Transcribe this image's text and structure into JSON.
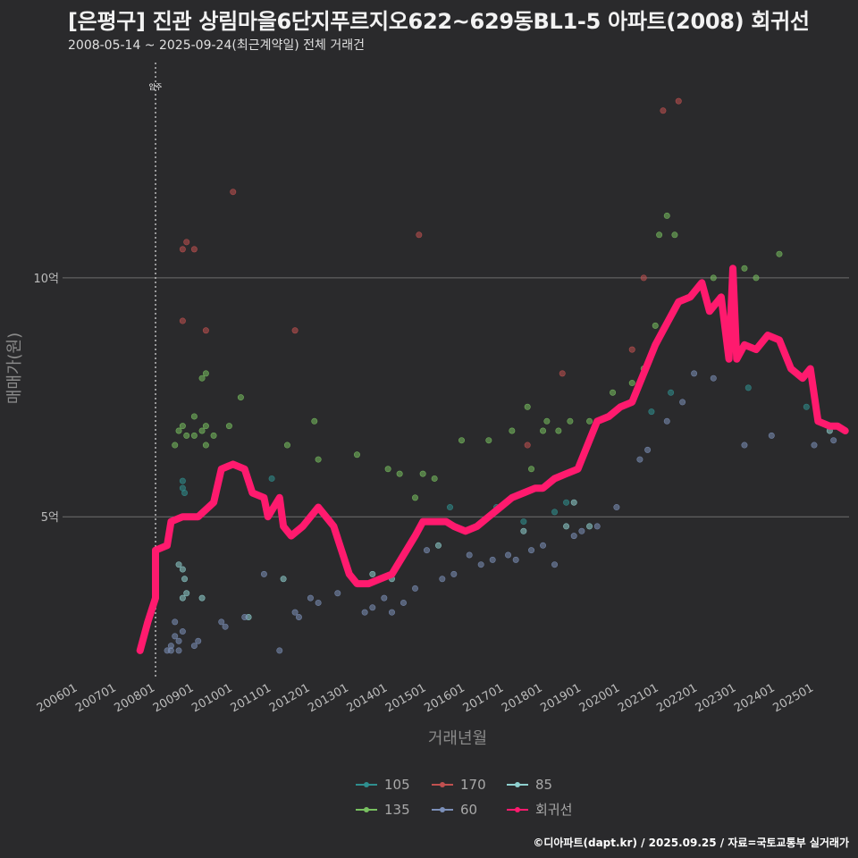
{
  "title": "[은평구] 진관 상림마을6단지푸르지오622~629동BL1-5 아파트(2008) 회귀선",
  "subtitle": "2008-05-14 ~ 2025-09-24(최근계약일) 전체 거래건",
  "source": "©디아파트(dapt.kr) / 2025.09.25 / 자료=국토교통부 실거래가",
  "chart_data": {
    "type": "scatter",
    "xlabel": "거래년월",
    "ylabel": "매매가(원)",
    "x_ticks": [
      "200601",
      "200701",
      "200801",
      "200901",
      "201001",
      "201101",
      "201201",
      "201301",
      "201401",
      "201501",
      "201601",
      "201701",
      "201801",
      "201901",
      "202001",
      "202101",
      "202201",
      "202301",
      "202401",
      "202501"
    ],
    "y_ticks": [
      {
        "value": 5,
        "label": "5억"
      },
      {
        "value": 10,
        "label": "10억"
      }
    ],
    "xlim": [
      2005.6,
      2025.9
    ],
    "ylim": [
      1.6,
      14.6
    ],
    "annotation": {
      "x": 2008.0,
      "label": "입주"
    },
    "legend_position": "bottom",
    "colors": {
      "105": "#2f8f8f",
      "170": "#c05050",
      "85": "#8fd0cf",
      "135": "#78c060",
      "60": "#7b8fb8",
      "회귀선": "#ff1a6e"
    },
    "series": [
      {
        "name": "105",
        "points": [
          [
            2008.7,
            5.6
          ],
          [
            2008.7,
            5.75
          ],
          [
            2008.75,
            5.5
          ],
          [
            2011.0,
            5.8
          ],
          [
            2015.6,
            5.2
          ],
          [
            2016.8,
            5.2
          ],
          [
            2017.5,
            4.9
          ],
          [
            2018.3,
            5.1
          ],
          [
            2018.6,
            5.3
          ],
          [
            2020.8,
            7.2
          ],
          [
            2021.3,
            7.6
          ],
          [
            2023.3,
            7.7
          ],
          [
            2024.8,
            7.3
          ]
        ]
      },
      {
        "name": "170",
        "points": [
          [
            2008.7,
            10.6
          ],
          [
            2008.8,
            10.75
          ],
          [
            2009.0,
            10.6
          ],
          [
            2008.7,
            9.1
          ],
          [
            2009.3,
            8.9
          ],
          [
            2010.0,
            11.8
          ],
          [
            2011.6,
            8.9
          ],
          [
            2014.8,
            10.9
          ],
          [
            2017.6,
            6.5
          ],
          [
            2018.5,
            8.0
          ],
          [
            2020.3,
            8.5
          ],
          [
            2021.1,
            13.5
          ],
          [
            2021.5,
            13.7
          ],
          [
            2020.6,
            10.0
          ]
        ]
      },
      {
        "name": "85",
        "points": [
          [
            2008.6,
            4.0
          ],
          [
            2008.7,
            3.9
          ],
          [
            2008.75,
            3.7
          ],
          [
            2008.7,
            3.3
          ],
          [
            2008.8,
            3.4
          ],
          [
            2009.2,
            3.3
          ],
          [
            2010.4,
            2.9
          ],
          [
            2011.3,
            3.7
          ],
          [
            2013.6,
            3.8
          ],
          [
            2014.1,
            3.7
          ],
          [
            2015.3,
            4.4
          ],
          [
            2017.5,
            4.7
          ],
          [
            2018.6,
            4.8
          ],
          [
            2019.2,
            4.8
          ],
          [
            2018.8,
            5.3
          ],
          [
            2025.4,
            6.8
          ],
          [
            2025.5,
            6.9
          ]
        ]
      },
      {
        "name": "135",
        "points": [
          [
            2008.5,
            6.5
          ],
          [
            2008.6,
            6.8
          ],
          [
            2008.7,
            6.9
          ],
          [
            2008.8,
            6.7
          ],
          [
            2009.0,
            7.1
          ],
          [
            2009.2,
            7.9
          ],
          [
            2009.3,
            8.0
          ],
          [
            2009.0,
            6.7
          ],
          [
            2009.2,
            6.8
          ],
          [
            2009.3,
            6.9
          ],
          [
            2009.3,
            6.5
          ],
          [
            2009.5,
            6.7
          ],
          [
            2009.9,
            6.9
          ],
          [
            2010.2,
            7.5
          ],
          [
            2011.4,
            6.5
          ],
          [
            2012.1,
            7.0
          ],
          [
            2012.2,
            6.2
          ],
          [
            2013.2,
            6.3
          ],
          [
            2014.0,
            6.0
          ],
          [
            2014.3,
            5.9
          ],
          [
            2014.7,
            5.4
          ],
          [
            2014.9,
            5.9
          ],
          [
            2015.2,
            5.8
          ],
          [
            2015.9,
            6.6
          ],
          [
            2016.6,
            6.6
          ],
          [
            2017.2,
            6.8
          ],
          [
            2017.6,
            7.3
          ],
          [
            2017.7,
            6.0
          ],
          [
            2018.0,
            6.8
          ],
          [
            2018.1,
            7.0
          ],
          [
            2018.4,
            6.8
          ],
          [
            2018.7,
            7.0
          ],
          [
            2019.2,
            7.0
          ],
          [
            2019.8,
            7.6
          ],
          [
            2020.3,
            7.8
          ],
          [
            2020.6,
            8.1
          ],
          [
            2020.9,
            9.0
          ],
          [
            2021.0,
            10.9
          ],
          [
            2021.2,
            11.3
          ],
          [
            2021.4,
            10.9
          ],
          [
            2022.4,
            10.0
          ],
          [
            2023.2,
            10.2
          ],
          [
            2023.5,
            10.0
          ],
          [
            2024.1,
            10.5
          ]
        ]
      },
      {
        "name": "60",
        "points": [
          [
            2008.3,
            2.2
          ],
          [
            2008.4,
            2.3
          ],
          [
            2008.5,
            2.5
          ],
          [
            2008.5,
            2.8
          ],
          [
            2008.6,
            2.4
          ],
          [
            2008.7,
            2.6
          ],
          [
            2008.6,
            2.2
          ],
          [
            2008.4,
            2.2
          ],
          [
            2009.0,
            2.3
          ],
          [
            2009.1,
            2.4
          ],
          [
            2009.7,
            2.8
          ],
          [
            2009.8,
            2.7
          ],
          [
            2010.3,
            2.9
          ],
          [
            2010.8,
            3.8
          ],
          [
            2011.2,
            2.2
          ],
          [
            2011.6,
            3.0
          ],
          [
            2011.7,
            2.9
          ],
          [
            2012.0,
            3.3
          ],
          [
            2012.2,
            3.2
          ],
          [
            2012.7,
            3.4
          ],
          [
            2013.4,
            3.0
          ],
          [
            2013.6,
            3.1
          ],
          [
            2013.9,
            3.3
          ],
          [
            2014.1,
            3.0
          ],
          [
            2014.4,
            3.2
          ],
          [
            2014.7,
            3.5
          ],
          [
            2015.0,
            4.3
          ],
          [
            2015.4,
            3.7
          ],
          [
            2015.7,
            3.8
          ],
          [
            2016.1,
            4.2
          ],
          [
            2016.4,
            4.0
          ],
          [
            2016.7,
            4.1
          ],
          [
            2017.1,
            4.2
          ],
          [
            2017.3,
            4.1
          ],
          [
            2017.7,
            4.3
          ],
          [
            2018.0,
            4.4
          ],
          [
            2018.3,
            4.0
          ],
          [
            2018.8,
            4.6
          ],
          [
            2019.0,
            4.7
          ],
          [
            2019.4,
            4.8
          ],
          [
            2019.9,
            5.2
          ],
          [
            2020.5,
            6.2
          ],
          [
            2020.7,
            6.4
          ],
          [
            2021.2,
            7.0
          ],
          [
            2021.6,
            7.4
          ],
          [
            2021.9,
            8.0
          ],
          [
            2022.4,
            7.9
          ],
          [
            2023.2,
            6.5
          ],
          [
            2023.9,
            6.7
          ],
          [
            2025.0,
            6.5
          ],
          [
            2025.5,
            6.6
          ]
        ]
      }
    ],
    "regression_line": {
      "name": "회귀선",
      "points": [
        [
          2007.6,
          2.2
        ],
        [
          2007.8,
          2.8
        ],
        [
          2008.0,
          3.3
        ],
        [
          2008.0,
          4.3
        ],
        [
          2008.3,
          4.4
        ],
        [
          2008.4,
          4.9
        ],
        [
          2008.7,
          5.0
        ],
        [
          2009.1,
          5.0
        ],
        [
          2009.5,
          5.3
        ],
        [
          2009.7,
          6.0
        ],
        [
          2010.0,
          6.1
        ],
        [
          2010.3,
          6.0
        ],
        [
          2010.5,
          5.5
        ],
        [
          2010.8,
          5.4
        ],
        [
          2010.9,
          5.0
        ],
        [
          2011.2,
          5.4
        ],
        [
          2011.3,
          4.8
        ],
        [
          2011.5,
          4.6
        ],
        [
          2011.8,
          4.8
        ],
        [
          2012.0,
          5.0
        ],
        [
          2012.2,
          5.2
        ],
        [
          2012.4,
          5.0
        ],
        [
          2012.6,
          4.8
        ],
        [
          2012.8,
          4.3
        ],
        [
          2013.0,
          3.8
        ],
        [
          2013.2,
          3.6
        ],
        [
          2013.5,
          3.6
        ],
        [
          2013.8,
          3.7
        ],
        [
          2014.1,
          3.8
        ],
        [
          2014.4,
          4.2
        ],
        [
          2014.7,
          4.6
        ],
        [
          2014.9,
          4.9
        ],
        [
          2015.2,
          4.9
        ],
        [
          2015.5,
          4.9
        ],
        [
          2015.7,
          4.8
        ],
        [
          2016.0,
          4.7
        ],
        [
          2016.3,
          4.8
        ],
        [
          2016.6,
          5.0
        ],
        [
          2016.9,
          5.2
        ],
        [
          2017.2,
          5.4
        ],
        [
          2017.5,
          5.5
        ],
        [
          2017.8,
          5.6
        ],
        [
          2018.0,
          5.6
        ],
        [
          2018.3,
          5.8
        ],
        [
          2018.6,
          5.9
        ],
        [
          2018.9,
          6.0
        ],
        [
          2019.1,
          6.4
        ],
        [
          2019.4,
          7.0
        ],
        [
          2019.7,
          7.1
        ],
        [
          2020.0,
          7.3
        ],
        [
          2020.3,
          7.4
        ],
        [
          2020.5,
          7.8
        ],
        [
          2020.7,
          8.2
        ],
        [
          2020.9,
          8.6
        ],
        [
          2021.1,
          8.9
        ],
        [
          2021.3,
          9.2
        ],
        [
          2021.5,
          9.5
        ],
        [
          2021.8,
          9.6
        ],
        [
          2022.1,
          9.9
        ],
        [
          2022.3,
          9.3
        ],
        [
          2022.6,
          9.6
        ],
        [
          2022.8,
          8.3
        ],
        [
          2022.9,
          10.2
        ],
        [
          2023.0,
          8.3
        ],
        [
          2023.2,
          8.6
        ],
        [
          2023.5,
          8.5
        ],
        [
          2023.8,
          8.8
        ],
        [
          2024.1,
          8.7
        ],
        [
          2024.4,
          8.1
        ],
        [
          2024.7,
          7.9
        ],
        [
          2024.9,
          8.1
        ],
        [
          2025.1,
          7.0
        ],
        [
          2025.4,
          6.9
        ],
        [
          2025.6,
          6.9
        ],
        [
          2025.8,
          6.8
        ]
      ]
    },
    "legend": [
      "105",
      "170",
      "85",
      "135",
      "60",
      "회귀선"
    ]
  }
}
